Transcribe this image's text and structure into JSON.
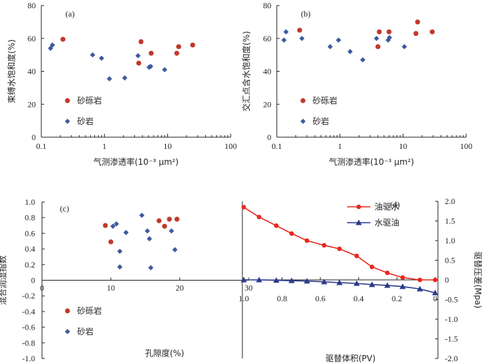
{
  "colors": {
    "gravel": "#c0392b",
    "sand": "#3d5a9e",
    "red_line": "#e8281e",
    "blue_line": "#2b3a8c",
    "axis": "#222222"
  },
  "chart_data": [
    {
      "id": "a",
      "panel_label": "(a)",
      "type": "scatter",
      "x_scale": "log",
      "xlim": [
        0.1,
        100
      ],
      "ylim": [
        0,
        80
      ],
      "x_ticks": [
        "0.1",
        "1",
        "10",
        "100"
      ],
      "y_ticks": [
        "0",
        "20",
        "40",
        "60",
        "80"
      ],
      "xlabel": "气测渗透率(10⁻³ μm²)",
      "ylabel": "束缚水饱和度(%)",
      "legend": "center-left",
      "series": [
        {
          "name": "砂砾岩",
          "marker": "circle",
          "x": [
            0.22,
            3.5,
            3.8,
            5.5,
            14,
            15,
            25
          ],
          "y": [
            59.5,
            45,
            58,
            51,
            51,
            55,
            56
          ]
        },
        {
          "name": "砂岩",
          "marker": "diamond",
          "x": [
            0.14,
            0.15,
            0.65,
            0.9,
            1.2,
            2.1,
            3.4,
            5.1,
            5.4,
            9
          ],
          "y": [
            54,
            56,
            50,
            48,
            35.5,
            36,
            49.5,
            42.5,
            43,
            41
          ]
        }
      ]
    },
    {
      "id": "b",
      "panel_label": "(b)",
      "type": "scatter",
      "x_scale": "log",
      "xlim": [
        0.1,
        100
      ],
      "ylim": [
        0,
        80
      ],
      "x_ticks": [
        "0.1",
        "1",
        "10",
        "100"
      ],
      "y_ticks": [
        "0",
        "20",
        "40",
        "60",
        "80"
      ],
      "xlabel": "气测渗透率(10⁻³ μm²)",
      "ylabel": "交汇点含水饱和度(%)",
      "legend": "center-left",
      "series": [
        {
          "name": "砂砾岩",
          "marker": "circle",
          "x": [
            0.23,
            4,
            4.2,
            6,
            16,
            17,
            29
          ],
          "y": [
            65,
            55,
            64,
            64,
            63,
            70,
            64
          ]
        },
        {
          "name": "砂岩",
          "marker": "diamond",
          "x": [
            0.13,
            0.14,
            0.25,
            0.7,
            0.95,
            1.45,
            2.3,
            3.8,
            5.8,
            6.1,
            10.5
          ],
          "y": [
            59,
            64,
            60,
            55,
            59,
            52,
            47,
            60,
            59,
            60.5,
            55
          ]
        }
      ]
    },
    {
      "id": "c",
      "panel_label": "(c)",
      "type": "scatter",
      "xlim": [
        0,
        30
      ],
      "ylim": [
        -1.0,
        1.0
      ],
      "x_ticks": [
        "0",
        "10",
        "20",
        "30"
      ],
      "y_ticks": [
        "-1.0",
        "-0.8",
        "-0.6",
        "-0.4",
        "-0.2",
        "0",
        "0.2",
        "0.4",
        "0.6",
        "0.8",
        "1.0"
      ],
      "xlabel": "孔隙度(%)",
      "ylabel": "混合润湿指数",
      "legend": "bottom-left",
      "series": [
        {
          "name": "砂砾岩",
          "marker": "circle",
          "x": [
            9.2,
            10,
            17,
            17.8,
            18.5,
            19.6
          ],
          "y": [
            0.7,
            0.49,
            0.76,
            0.69,
            0.78,
            0.78
          ]
        },
        {
          "name": "砂岩",
          "marker": "diamond",
          "x": [
            10.3,
            10.8,
            11.3,
            11.3,
            12.2,
            14.5,
            15.3,
            15.6,
            15.8,
            18.8,
            19.3
          ],
          "y": [
            0.69,
            0.72,
            0.37,
            0.17,
            0.61,
            0.83,
            0.63,
            0.53,
            0.16,
            0.63,
            0.39
          ]
        }
      ]
    },
    {
      "id": "d",
      "panel_label": "(d)",
      "type": "line",
      "xlim": [
        1.0,
        0
      ],
      "ylim": [
        -2.0,
        2.0
      ],
      "x_ticks": [
        "1.0",
        "0.8",
        "0.6",
        "0.4",
        "0.2",
        "0"
      ],
      "y_ticks": [
        "-2.0",
        "-1.5",
        "-1.0",
        "-0.5",
        "0",
        "0.5",
        "1.0",
        "1.5",
        "2.0"
      ],
      "xlabel": "驱替体积(PV)",
      "ylabel": "驱替压差(Mpa)",
      "legend": "top-right",
      "series": [
        {
          "name": "油驱水",
          "marker": "circle",
          "x": [
            1.0,
            0.92,
            0.83,
            0.75,
            0.67,
            0.58,
            0.5,
            0.41,
            0.33,
            0.25,
            0.17,
            0.08,
            0.0
          ],
          "y": [
            1.85,
            1.6,
            1.38,
            1.18,
            1.0,
            0.88,
            0.79,
            0.61,
            0.33,
            0.18,
            0.06,
            0.0,
            0.0
          ]
        },
        {
          "name": "水驱油",
          "marker": "triangle",
          "x": [
            1.0,
            0.92,
            0.83,
            0.75,
            0.67,
            0.58,
            0.5,
            0.41,
            0.33,
            0.25,
            0.17,
            0.08,
            0.0
          ],
          "y": [
            0.0,
            0.0,
            -0.01,
            -0.02,
            -0.03,
            -0.05,
            -0.07,
            -0.09,
            -0.12,
            -0.14,
            -0.17,
            -0.23,
            -0.33
          ]
        }
      ]
    }
  ]
}
